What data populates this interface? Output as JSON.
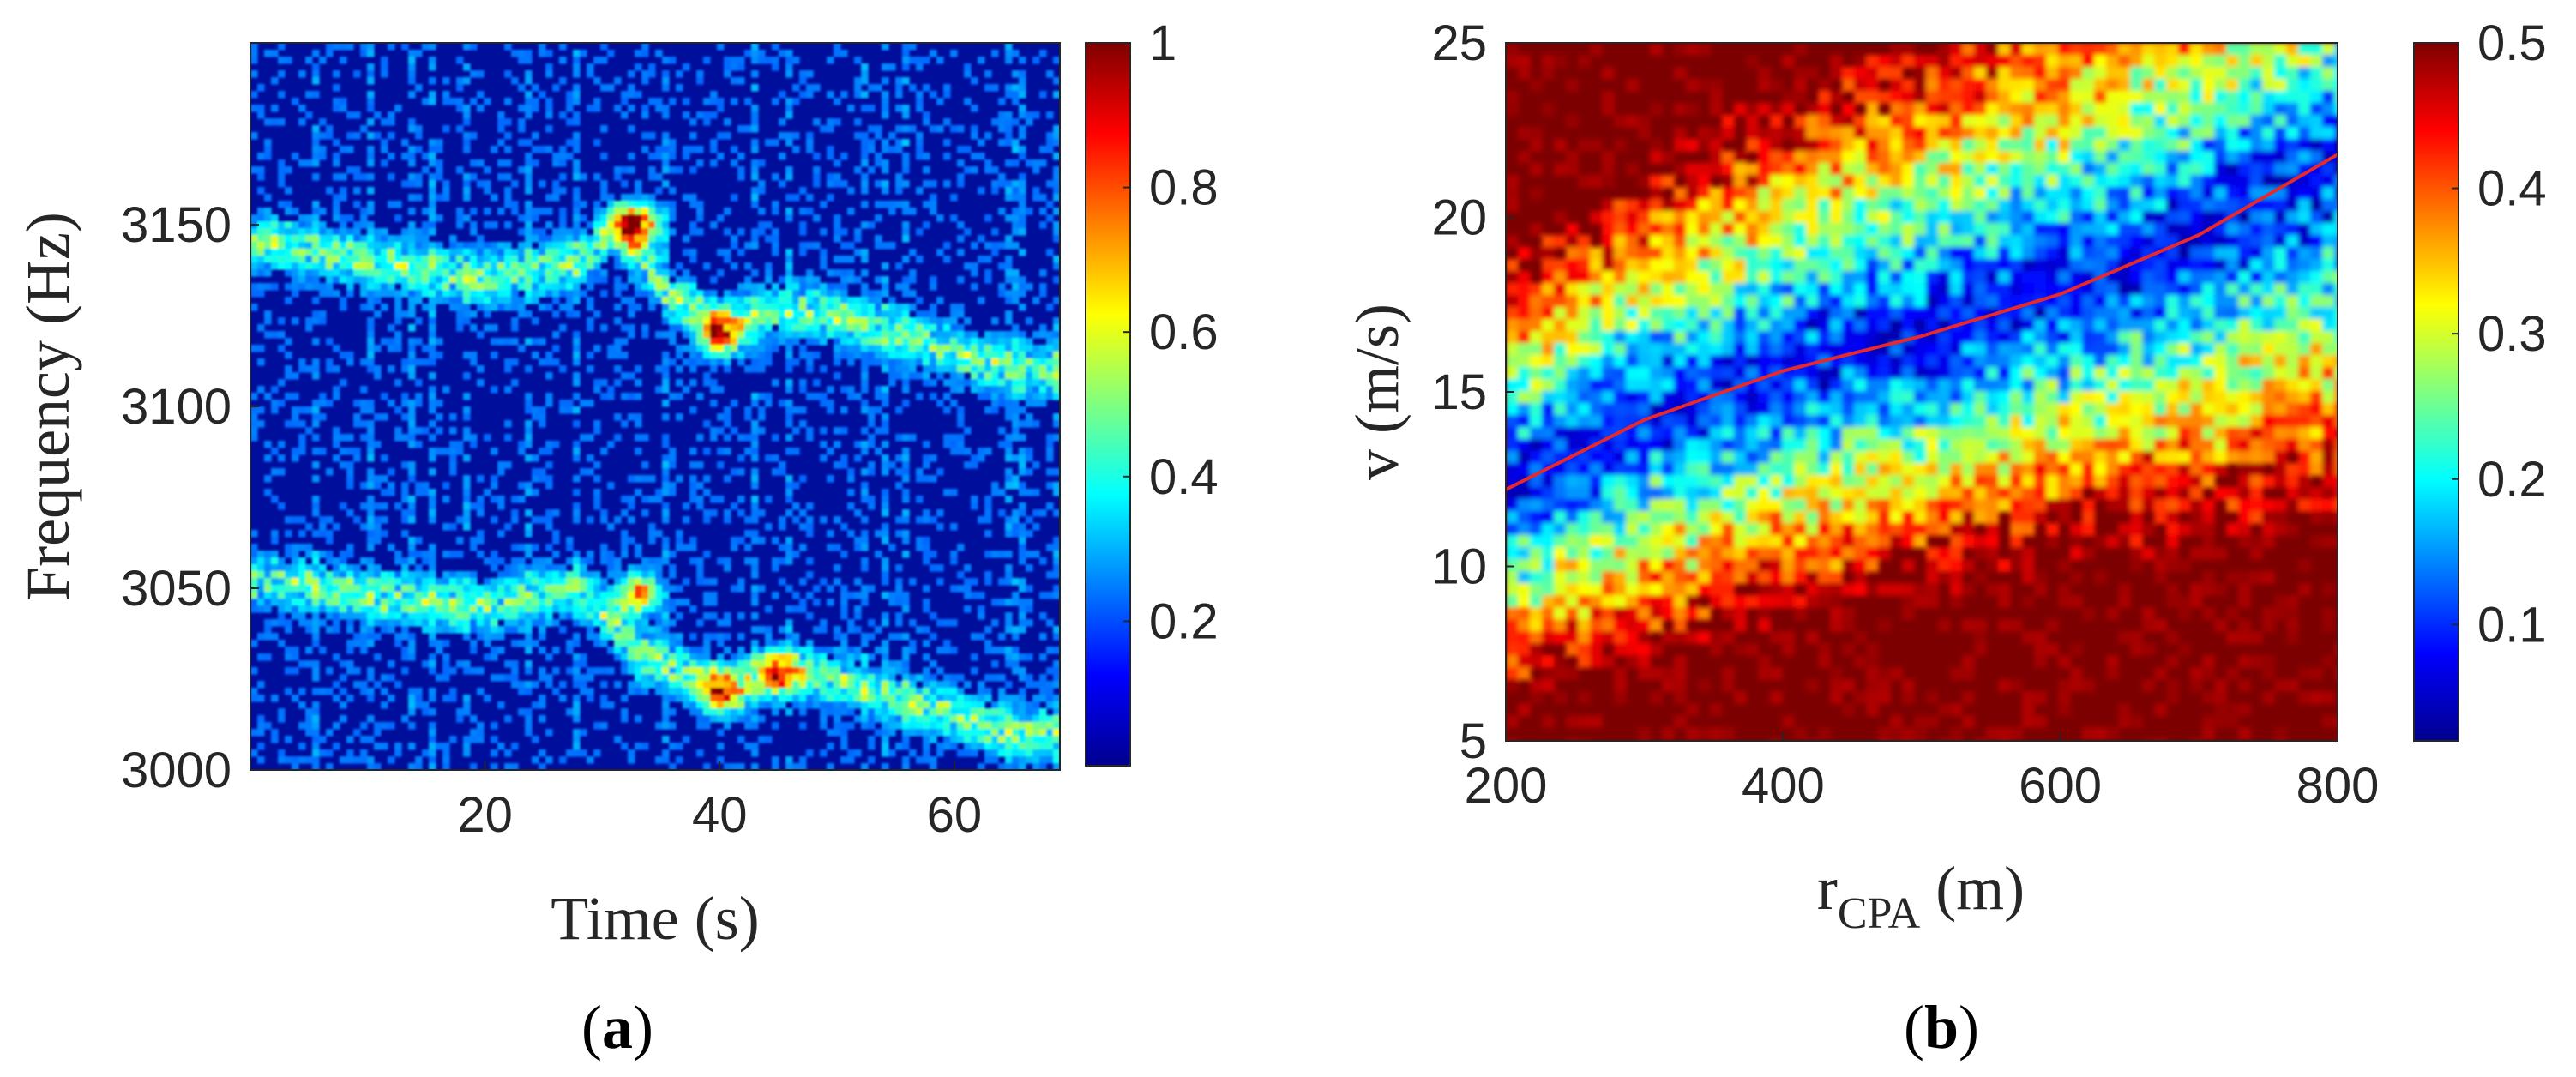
{
  "panels": [
    {
      "label_open": "(",
      "label_letter": "a",
      "label_close": ")"
    },
    {
      "label_open": "(",
      "label_letter": "b",
      "label_close": ")"
    }
  ],
  "chart_data": [
    {
      "type": "heatmap",
      "panel": "a",
      "xlabel": "Time (s)",
      "ylabel": "Frequency (Hz)",
      "xlim": [
        0,
        69
      ],
      "ylim": [
        3000,
        3200
      ],
      "xticks": [
        "20",
        "40",
        "60"
      ],
      "xtick_values": [
        20,
        40,
        60
      ],
      "yticks": [
        "3000",
        "3050",
        "3100",
        "3150"
      ],
      "ytick_values": [
        3000,
        3050,
        3100,
        3150
      ],
      "colormap": "jet",
      "clim": [
        0,
        1
      ],
      "colorbar_ticks": [
        "0.2",
        "0.4",
        "0.6",
        "0.8",
        "1"
      ],
      "colorbar_tick_values": [
        0.2,
        0.4,
        0.6,
        0.8,
        1.0
      ],
      "ridges": [
        {
          "x": [
            2,
            10,
            20,
            28,
            31,
            33,
            36,
            40,
            45,
            50,
            55,
            60,
            65
          ],
          "y": [
            3145,
            3140,
            3135,
            3140,
            3150,
            3142,
            3130,
            3122,
            3127,
            3125,
            3120,
            3115,
            3110
          ]
        },
        {
          "x": [
            2,
            10,
            20,
            28,
            31,
            33,
            36,
            40,
            45,
            50,
            55,
            60,
            65
          ],
          "y": [
            3052,
            3048,
            3045,
            3050,
            3040,
            3032,
            3028,
            3022,
            3027,
            3025,
            3020,
            3015,
            3010
          ]
        }
      ],
      "hotspots": [
        {
          "x": 33,
          "y": 3150,
          "value": 0.95
        },
        {
          "x": 40,
          "y": 3120,
          "value": 0.75
        },
        {
          "x": 33,
          "y": 3048,
          "value": 0.7
        },
        {
          "x": 40,
          "y": 3022,
          "value": 0.65
        },
        {
          "x": 45,
          "y": 3027,
          "value": 0.65
        }
      ],
      "background_level": 0.05
    },
    {
      "type": "heatmap",
      "panel": "b",
      "xlabel_main": "r",
      "xlabel_sub": "CPA",
      "xlabel_unit": " (m)",
      "ylabel": "v (m/s)",
      "xlim": [
        200,
        800
      ],
      "ylim": [
        5,
        25
      ],
      "xticks": [
        "200",
        "400",
        "600",
        "800"
      ],
      "xtick_values": [
        200,
        400,
        600,
        800
      ],
      "yticks": [
        "5",
        "10",
        "15",
        "20",
        "25"
      ],
      "ytick_values": [
        5,
        10,
        15,
        20,
        25
      ],
      "colormap": "jet",
      "clim": [
        0.02,
        0.5
      ],
      "colorbar_ticks": [
        "0.1",
        "0.2",
        "0.3",
        "0.4",
        "0.5"
      ],
      "colorbar_tick_values": [
        0.1,
        0.2,
        0.3,
        0.4,
        0.5
      ],
      "valley_curve": {
        "x": [
          200,
          300,
          400,
          500,
          600,
          700,
          800
        ],
        "y": [
          12.2,
          14.2,
          15.6,
          16.6,
          17.8,
          19.5,
          21.8
        ],
        "color": "#e8282b"
      },
      "band_upper_edge": {
        "x": [
          200,
          400,
          600,
          800
        ],
        "y": [
          18.5,
          23.0,
          26.5,
          29.0
        ]
      },
      "band_lower_edge": {
        "x": [
          200,
          400,
          600,
          800
        ],
        "y": [
          6.5,
          9.0,
          11.0,
          12.0
        ]
      }
    }
  ]
}
